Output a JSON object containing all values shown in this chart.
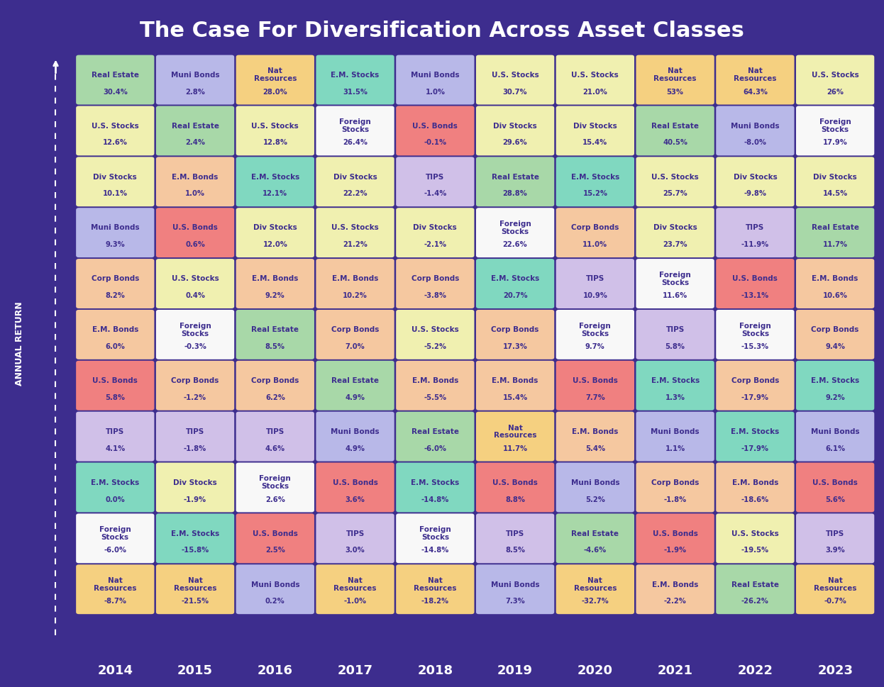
{
  "title": "The Case For Diversification Across Asset Classes",
  "background_color": "#3d2d8e",
  "years": [
    "2014",
    "2015",
    "2016",
    "2017",
    "2018",
    "2019",
    "2020",
    "2021",
    "2022",
    "2023"
  ],
  "grid": [
    [
      {
        "label": "Real Estate",
        "value": "30.4%",
        "color": "#a8d8a8"
      },
      {
        "label": "Muni Bonds",
        "value": "2.8%",
        "color": "#b8b8e8"
      },
      {
        "label": "Nat\nResources",
        "value": "28.0%",
        "color": "#f5d080"
      },
      {
        "label": "E.M. Stocks",
        "value": "31.5%",
        "color": "#80d8c0"
      },
      {
        "label": "Muni Bonds",
        "value": "1.0%",
        "color": "#b8b8e8"
      },
      {
        "label": "U.S. Stocks",
        "value": "30.7%",
        "color": "#f0f0b0"
      },
      {
        "label": "U.S. Stocks",
        "value": "21.0%",
        "color": "#f0f0b0"
      },
      {
        "label": "Nat\nResources",
        "value": "53%",
        "color": "#f5d080"
      },
      {
        "label": "Nat\nResources",
        "value": "64.3%",
        "color": "#f5d080"
      },
      {
        "label": "U.S. Stocks",
        "value": "26%",
        "color": "#f0f0b0"
      }
    ],
    [
      {
        "label": "U.S. Stocks",
        "value": "12.6%",
        "color": "#f0f0b0"
      },
      {
        "label": "Real Estate",
        "value": "2.4%",
        "color": "#a8d8a8"
      },
      {
        "label": "U.S. Stocks",
        "value": "12.8%",
        "color": "#f0f0b0"
      },
      {
        "label": "Foreign\nStocks",
        "value": "26.4%",
        "color": "#f8f8f8"
      },
      {
        "label": "U.S. Bonds",
        "value": "-0.1%",
        "color": "#f08080"
      },
      {
        "label": "Div Stocks",
        "value": "29.6%",
        "color": "#f0f0b0"
      },
      {
        "label": "Div Stocks",
        "value": "15.4%",
        "color": "#f0f0b0"
      },
      {
        "label": "Real Estate",
        "value": "40.5%",
        "color": "#a8d8a8"
      },
      {
        "label": "Muni Bonds",
        "value": "-8.0%",
        "color": "#b8b8e8"
      },
      {
        "label": "Foreign\nStocks",
        "value": "17.9%",
        "color": "#f8f8f8"
      }
    ],
    [
      {
        "label": "Div Stocks",
        "value": "10.1%",
        "color": "#f0f0b0"
      },
      {
        "label": "E.M. Bonds",
        "value": "1.0%",
        "color": "#f5c8a0"
      },
      {
        "label": "E.M. Stocks",
        "value": "12.1%",
        "color": "#80d8c0"
      },
      {
        "label": "Div Stocks",
        "value": "22.2%",
        "color": "#f0f0b0"
      },
      {
        "label": "TIPS",
        "value": "-1.4%",
        "color": "#d0c0e8"
      },
      {
        "label": "Real Estate",
        "value": "28.8%",
        "color": "#a8d8a8"
      },
      {
        "label": "E.M. Stocks",
        "value": "15.2%",
        "color": "#80d8c0"
      },
      {
        "label": "U.S. Stocks",
        "value": "25.7%",
        "color": "#f0f0b0"
      },
      {
        "label": "Div Stocks",
        "value": "-9.8%",
        "color": "#f0f0b0"
      },
      {
        "label": "Div Stocks",
        "value": "14.5%",
        "color": "#f0f0b0"
      }
    ],
    [
      {
        "label": "Muni Bonds",
        "value": "9.3%",
        "color": "#b8b8e8"
      },
      {
        "label": "U.S. Bonds",
        "value": "0.6%",
        "color": "#f08080"
      },
      {
        "label": "Div Stocks",
        "value": "12.0%",
        "color": "#f0f0b0"
      },
      {
        "label": "U.S. Stocks",
        "value": "21.2%",
        "color": "#f0f0b0"
      },
      {
        "label": "Div Stocks",
        "value": "-2.1%",
        "color": "#f0f0b0"
      },
      {
        "label": "Foreign\nStocks",
        "value": "22.6%",
        "color": "#f8f8f8"
      },
      {
        "label": "Corp Bonds",
        "value": "11.0%",
        "color": "#f5c8a0"
      },
      {
        "label": "Div Stocks",
        "value": "23.7%",
        "color": "#f0f0b0"
      },
      {
        "label": "TIPS",
        "value": "-11.9%",
        "color": "#d0c0e8"
      },
      {
        "label": "Real Estate",
        "value": "11.7%",
        "color": "#a8d8a8"
      }
    ],
    [
      {
        "label": "Corp Bonds",
        "value": "8.2%",
        "color": "#f5c8a0"
      },
      {
        "label": "U.S. Stocks",
        "value": "0.4%",
        "color": "#f0f0b0"
      },
      {
        "label": "E.M. Bonds",
        "value": "9.2%",
        "color": "#f5c8a0"
      },
      {
        "label": "E.M. Bonds",
        "value": "10.2%",
        "color": "#f5c8a0"
      },
      {
        "label": "Corp Bonds",
        "value": "-3.8%",
        "color": "#f5c8a0"
      },
      {
        "label": "E.M. Stocks",
        "value": "20.7%",
        "color": "#80d8c0"
      },
      {
        "label": "TIPS",
        "value": "10.9%",
        "color": "#d0c0e8"
      },
      {
        "label": "Foreign\nStocks",
        "value": "11.6%",
        "color": "#f8f8f8"
      },
      {
        "label": "U.S. Bonds",
        "value": "-13.1%",
        "color": "#f08080"
      },
      {
        "label": "E.M. Bonds",
        "value": "10.6%",
        "color": "#f5c8a0"
      }
    ],
    [
      {
        "label": "E.M. Bonds",
        "value": "6.0%",
        "color": "#f5c8a0"
      },
      {
        "label": "Foreign\nStocks",
        "value": "-0.3%",
        "color": "#f8f8f8"
      },
      {
        "label": "Real Estate",
        "value": "8.5%",
        "color": "#a8d8a8"
      },
      {
        "label": "Corp Bonds",
        "value": "7.0%",
        "color": "#f5c8a0"
      },
      {
        "label": "U.S. Stocks",
        "value": "-5.2%",
        "color": "#f0f0b0"
      },
      {
        "label": "Corp Bonds",
        "value": "17.3%",
        "color": "#f5c8a0"
      },
      {
        "label": "Foreign\nStocks",
        "value": "9.7%",
        "color": "#f8f8f8"
      },
      {
        "label": "TIPS",
        "value": "5.8%",
        "color": "#d0c0e8"
      },
      {
        "label": "Foreign\nStocks",
        "value": "-15.3%",
        "color": "#f8f8f8"
      },
      {
        "label": "Corp Bonds",
        "value": "9.4%",
        "color": "#f5c8a0"
      }
    ],
    [
      {
        "label": "U.S. Bonds",
        "value": "5.8%",
        "color": "#f08080"
      },
      {
        "label": "Corp Bonds",
        "value": "-1.2%",
        "color": "#f5c8a0"
      },
      {
        "label": "Corp Bonds",
        "value": "6.2%",
        "color": "#f5c8a0"
      },
      {
        "label": "Real Estate",
        "value": "4.9%",
        "color": "#a8d8a8"
      },
      {
        "label": "E.M. Bonds",
        "value": "-5.5%",
        "color": "#f5c8a0"
      },
      {
        "label": "E.M. Bonds",
        "value": "15.4%",
        "color": "#f5c8a0"
      },
      {
        "label": "U.S. Bonds",
        "value": "7.7%",
        "color": "#f08080"
      },
      {
        "label": "E.M. Stocks",
        "value": "1.3%",
        "color": "#80d8c0"
      },
      {
        "label": "Corp Bonds",
        "value": "-17.9%",
        "color": "#f5c8a0"
      },
      {
        "label": "E.M. Stocks",
        "value": "9.2%",
        "color": "#80d8c0"
      }
    ],
    [
      {
        "label": "TIPS",
        "value": "4.1%",
        "color": "#d0c0e8"
      },
      {
        "label": "TIPS",
        "value": "-1.8%",
        "color": "#d0c0e8"
      },
      {
        "label": "TIPS",
        "value": "4.6%",
        "color": "#d0c0e8"
      },
      {
        "label": "Muni Bonds",
        "value": "4.9%",
        "color": "#b8b8e8"
      },
      {
        "label": "Real Estate",
        "value": "-6.0%",
        "color": "#a8d8a8"
      },
      {
        "label": "Nat\nResources",
        "value": "11.7%",
        "color": "#f5d080"
      },
      {
        "label": "E.M. Bonds",
        "value": "5.4%",
        "color": "#f5c8a0"
      },
      {
        "label": "Muni Bonds",
        "value": "1.1%",
        "color": "#b8b8e8"
      },
      {
        "label": "E.M. Stocks",
        "value": "-17.9%",
        "color": "#80d8c0"
      },
      {
        "label": "Muni Bonds",
        "value": "6.1%",
        "color": "#b8b8e8"
      }
    ],
    [
      {
        "label": "E.M. Stocks",
        "value": "0.0%",
        "color": "#80d8c0"
      },
      {
        "label": "Div Stocks",
        "value": "-1.9%",
        "color": "#f0f0b0"
      },
      {
        "label": "Foreign\nStocks",
        "value": "2.6%",
        "color": "#f8f8f8"
      },
      {
        "label": "U.S. Bonds",
        "value": "3.6%",
        "color": "#f08080"
      },
      {
        "label": "E.M. Stocks",
        "value": "-14.8%",
        "color": "#80d8c0"
      },
      {
        "label": "U.S. Bonds",
        "value": "8.8%",
        "color": "#f08080"
      },
      {
        "label": "Muni Bonds",
        "value": "5.2%",
        "color": "#b8b8e8"
      },
      {
        "label": "Corp Bonds",
        "value": "-1.8%",
        "color": "#f5c8a0"
      },
      {
        "label": "E.M. Bonds",
        "value": "-18.6%",
        "color": "#f5c8a0"
      },
      {
        "label": "U.S. Bonds",
        "value": "5.6%",
        "color": "#f08080"
      }
    ],
    [
      {
        "label": "Foreign\nStocks",
        "value": "-6.0%",
        "color": "#f8f8f8"
      },
      {
        "label": "E.M. Stocks",
        "value": "-15.8%",
        "color": "#80d8c0"
      },
      {
        "label": "U.S. Bonds",
        "value": "2.5%",
        "color": "#f08080"
      },
      {
        "label": "TIPS",
        "value": "3.0%",
        "color": "#d0c0e8"
      },
      {
        "label": "Foreign\nStocks",
        "value": "-14.8%",
        "color": "#f8f8f8"
      },
      {
        "label": "TIPS",
        "value": "8.5%",
        "color": "#d0c0e8"
      },
      {
        "label": "Real Estate",
        "value": "-4.6%",
        "color": "#a8d8a8"
      },
      {
        "label": "U.S. Bonds",
        "value": "-1.9%",
        "color": "#f08080"
      },
      {
        "label": "U.S. Stocks",
        "value": "-19.5%",
        "color": "#f0f0b0"
      },
      {
        "label": "TIPS",
        "value": "3.9%",
        "color": "#d0c0e8"
      }
    ],
    [
      {
        "label": "Nat\nResources",
        "value": "-8.7%",
        "color": "#f5d080"
      },
      {
        "label": "Nat\nResources",
        "value": "-21.5%",
        "color": "#f5d080"
      },
      {
        "label": "Muni Bonds",
        "value": "0.2%",
        "color": "#b8b8e8"
      },
      {
        "label": "Nat\nResources",
        "value": "-1.0%",
        "color": "#f5d080"
      },
      {
        "label": "Nat\nResources",
        "value": "-18.2%",
        "color": "#f5d080"
      },
      {
        "label": "Muni Bonds",
        "value": "7.3%",
        "color": "#b8b8e8"
      },
      {
        "label": "Nat\nResources",
        "value": "-32.7%",
        "color": "#f5d080"
      },
      {
        "label": "E.M. Bonds",
        "value": "-2.2%",
        "color": "#f5c8a0"
      },
      {
        "label": "Real Estate",
        "value": "-26.2%",
        "color": "#a8d8a8"
      },
      {
        "label": "Nat\nResources",
        "value": "-0.7%",
        "color": "#f5d080"
      }
    ]
  ]
}
